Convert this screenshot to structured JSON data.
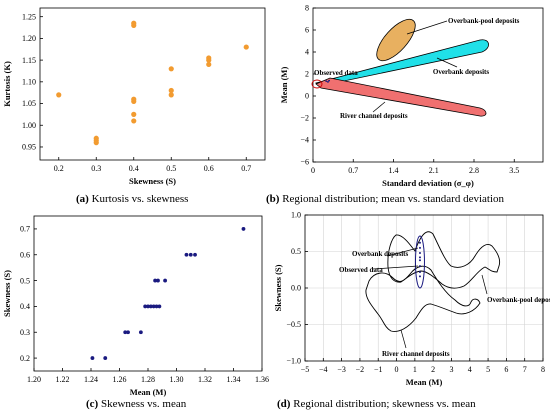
{
  "figure": {
    "captions": [
      {
        "tag": "(a)",
        "text": "Kurtosis vs. skewness"
      },
      {
        "tag": "(b)",
        "text": "Regional distribution; mean vs. standard deviation"
      },
      {
        "tag": "(c)",
        "text": "Skewness vs. mean"
      },
      {
        "tag": "(d)",
        "text": "Regional distribution; skewness vs. mean"
      }
    ]
  },
  "colors": {
    "orange": "#f29b30",
    "navy": "#1a1a80",
    "overbank_pool": "#e8b060",
    "overbank": "#20e0e8",
    "river_channel": "#f07070",
    "black": "#000000",
    "grid": "#d4d4d4"
  },
  "chart_data": [
    {
      "id": "a",
      "type": "scatter",
      "xlabel": "Skewness (S)",
      "ylabel": "Kurtosis (K)",
      "xlim": [
        0.15,
        0.75
      ],
      "ylim": [
        0.92,
        1.27
      ],
      "xticks": [
        "0.2",
        "0.3",
        "0.4",
        "0.5",
        "0.6",
        "0.7"
      ],
      "xtick_values": [
        0.2,
        0.3,
        0.4,
        0.5,
        0.6,
        0.7
      ],
      "yticks": [
        "0.95",
        "1.00",
        "1.05",
        "1.10",
        "1.15",
        "1.20",
        "1.25"
      ],
      "ytick_values": [
        0.95,
        1.0,
        1.05,
        1.1,
        1.15,
        1.2,
        1.25
      ],
      "grid": false,
      "points": [
        {
          "x": 0.2,
          "y": 1.07
        },
        {
          "x": 0.3,
          "y": 0.97
        },
        {
          "x": 0.3,
          "y": 0.965
        },
        {
          "x": 0.3,
          "y": 0.96
        },
        {
          "x": 0.4,
          "y": 1.235
        },
        {
          "x": 0.4,
          "y": 1.23
        },
        {
          "x": 0.4,
          "y": 1.06
        },
        {
          "x": 0.4,
          "y": 1.055
        },
        {
          "x": 0.4,
          "y": 1.025
        },
        {
          "x": 0.4,
          "y": 1.01
        },
        {
          "x": 0.5,
          "y": 1.13
        },
        {
          "x": 0.5,
          "y": 1.08
        },
        {
          "x": 0.5,
          "y": 1.07
        },
        {
          "x": 0.6,
          "y": 1.155
        },
        {
          "x": 0.6,
          "y": 1.15
        },
        {
          "x": 0.6,
          "y": 1.14
        },
        {
          "x": 0.7,
          "y": 1.18
        }
      ]
    },
    {
      "id": "b",
      "type": "scatter",
      "xlabel": "Standard deviation (σ_φ)",
      "ylabel": "Mean (M)",
      "xlim": [
        0.0,
        4.0
      ],
      "ylim": [
        -6,
        8
      ],
      "xticks": [
        "0",
        "0.7",
        "1.4",
        "2.1",
        "2.8",
        "3.5"
      ],
      "xtick_values": [
        0,
        0.7,
        1.4,
        2.1,
        2.8,
        3.5
      ],
      "yticks": [
        "−6",
        "−4",
        "−2",
        "0",
        "2",
        "4",
        "6",
        "8"
      ],
      "ytick_values": [
        -6,
        -4,
        -2,
        0,
        2,
        4,
        6,
        8
      ],
      "grid": false,
      "regions": [
        {
          "label": "Overbank-pool deposits",
          "color_key": "overbank_pool"
        },
        {
          "label": "Overbank deposits",
          "color_key": "overbank"
        },
        {
          "label": "River channel deposits",
          "color_key": "river_channel"
        }
      ],
      "annotations": [
        {
          "label": "Observed data"
        }
      ],
      "observed_points": [
        {
          "x": 0.23,
          "y": 1.35
        },
        {
          "x": 0.26,
          "y": 1.28
        },
        {
          "x": 0.28,
          "y": 1.4
        }
      ]
    },
    {
      "id": "c",
      "type": "scatter",
      "xlabel": "Mean (M)",
      "ylabel": "Skewness (S)",
      "xlim": [
        1.2,
        1.36
      ],
      "ylim": [
        0.15,
        0.75
      ],
      "xticks": [
        "1.20",
        "1.22",
        "1.24",
        "1.26",
        "1.28",
        "1.30",
        "1.32",
        "1.34",
        "1.36"
      ],
      "xtick_values": [
        1.2,
        1.22,
        1.24,
        1.26,
        1.28,
        1.3,
        1.32,
        1.34,
        1.36
      ],
      "yticks": [
        "0.2",
        "0.3",
        "0.4",
        "0.5",
        "0.6",
        "0.7"
      ],
      "ytick_values": [
        0.2,
        0.3,
        0.4,
        0.5,
        0.6,
        0.7
      ],
      "grid": false,
      "points": [
        {
          "x": 1.241,
          "y": 0.2
        },
        {
          "x": 1.25,
          "y": 0.2
        },
        {
          "x": 1.264,
          "y": 0.3
        },
        {
          "x": 1.266,
          "y": 0.3
        },
        {
          "x": 1.275,
          "y": 0.3
        },
        {
          "x": 1.278,
          "y": 0.4
        },
        {
          "x": 1.28,
          "y": 0.4
        },
        {
          "x": 1.282,
          "y": 0.4
        },
        {
          "x": 1.284,
          "y": 0.4
        },
        {
          "x": 1.286,
          "y": 0.4
        },
        {
          "x": 1.288,
          "y": 0.4
        },
        {
          "x": 1.285,
          "y": 0.5
        },
        {
          "x": 1.287,
          "y": 0.5
        },
        {
          "x": 1.292,
          "y": 0.5
        },
        {
          "x": 1.307,
          "y": 0.6
        },
        {
          "x": 1.31,
          "y": 0.6
        },
        {
          "x": 1.313,
          "y": 0.6
        },
        {
          "x": 1.347,
          "y": 0.7
        }
      ]
    },
    {
      "id": "d",
      "type": "scatter",
      "xlabel": "Mean (M)",
      "ylabel": "Skewness (S)",
      "xlim": [
        -5,
        8
      ],
      "ylim": [
        -1.0,
        1.0
      ],
      "xticks": [
        "−5",
        "−4",
        "−3",
        "−2",
        "−1",
        "0",
        "1",
        "2",
        "3",
        "4",
        "5",
        "6",
        "7",
        "8"
      ],
      "xtick_values": [
        -5,
        -4,
        -3,
        -2,
        -1,
        0,
        1,
        2,
        3,
        4,
        5,
        6,
        7,
        8
      ],
      "yticks": [
        "−1.0",
        "−0.5",
        "0.0",
        "0.5",
        "1.0"
      ],
      "ytick_values": [
        -1.0,
        -0.5,
        0.0,
        0.5,
        1.0
      ],
      "grid": true,
      "regions": [
        {
          "label": "Overbank deposits"
        },
        {
          "label": "Overbank-pool deposits"
        },
        {
          "label": "River channel deposits"
        }
      ],
      "annotations": [
        {
          "label": "Observed data"
        }
      ],
      "observed_points": [
        {
          "x": 1.28,
          "y": 0.62
        },
        {
          "x": 1.28,
          "y": 0.55
        },
        {
          "x": 1.28,
          "y": 0.48
        },
        {
          "x": 1.28,
          "y": 0.42
        },
        {
          "x": 1.28,
          "y": 0.38
        },
        {
          "x": 1.28,
          "y": 0.3
        },
        {
          "x": 1.28,
          "y": 0.22
        },
        {
          "x": 1.28,
          "y": 0.16
        }
      ]
    }
  ]
}
